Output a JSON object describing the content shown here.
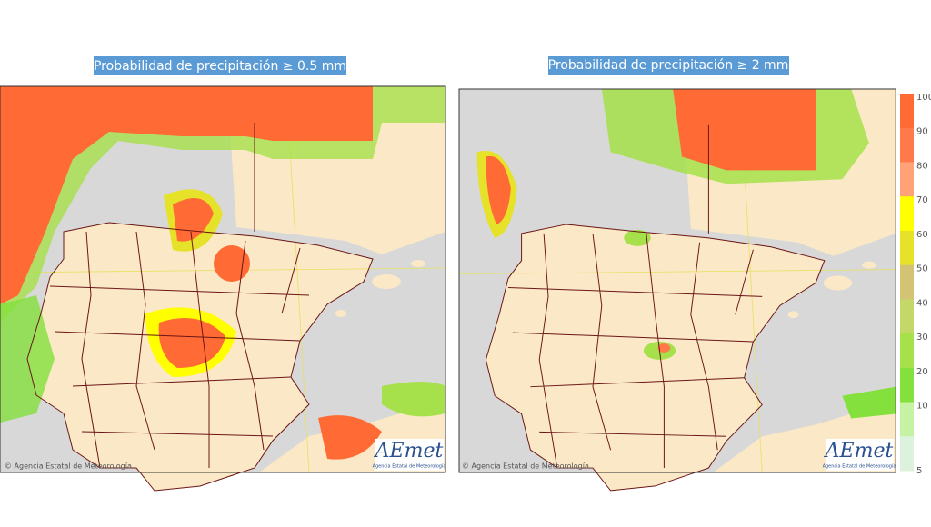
{
  "maps": [
    {
      "title": "Probabilidad de precipitación ≥ 0.5 mm",
      "credit": "© Agencia Estatal de Meteorología",
      "logo": "AEmet",
      "logo_caption": "Agencia Estatal de Meteorología"
    },
    {
      "title": "Probabilidad de precipitación ≥ 2 mm",
      "credit": "© Agencia Estatal de Meteorología",
      "logo": "AEmet",
      "logo_caption": "Agencia Estatal de Meteorología"
    }
  ],
  "legend": {
    "levels": [
      {
        "label": "100",
        "color": "#ff6a35"
      },
      {
        "label": "90",
        "color": "#ff7a48"
      },
      {
        "label": "80",
        "color": "#ffa277"
      },
      {
        "label": "70",
        "color": "#ffff00"
      },
      {
        "label": "60",
        "color": "#e6e22a"
      },
      {
        "label": "50",
        "color": "#d2c472"
      },
      {
        "label": "40",
        "color": "#c4d86a"
      },
      {
        "label": "30",
        "color": "#a6e04a"
      },
      {
        "label": "20",
        "color": "#84e03c"
      },
      {
        "label": "10",
        "color": "#c6f2a4"
      },
      {
        "label": "5",
        "color": "#dcf2dc"
      }
    ]
  }
}
